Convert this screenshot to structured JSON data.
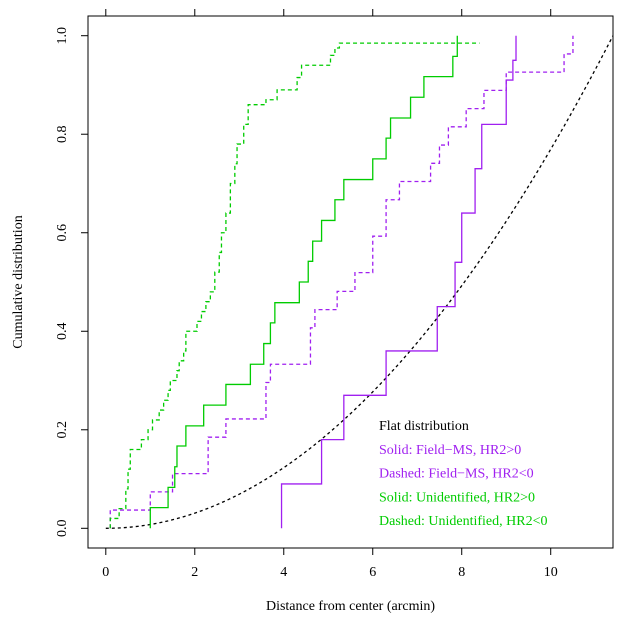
{
  "chart_data": {
    "type": "line",
    "title": "",
    "xlabel": "Distance from center (arcmin)",
    "ylabel": "Cumulative distribution",
    "xlim": [
      -0.4,
      11.4
    ],
    "ylim": [
      -0.04,
      1.04
    ],
    "x_ticks": [
      0,
      2,
      4,
      6,
      8,
      10
    ],
    "x_tick_labels": [
      "0",
      "2",
      "4",
      "6",
      "8",
      "10"
    ],
    "y_ticks": [
      0.0,
      0.2,
      0.4,
      0.6,
      0.8,
      1.0
    ],
    "y_tick_labels": [
      "0.0",
      "0.2",
      "0.4",
      "0.6",
      "0.8",
      "1.0"
    ],
    "grid": false,
    "box": true,
    "legend_position": "bottom-right",
    "colors": {
      "purple": "#a020f0",
      "green": "#00cc00",
      "black": "#000000"
    },
    "legend": [
      {
        "text": "Flat distribution",
        "color": "#000000"
      },
      {
        "text": "Solid: Field−MS, HR2>0",
        "color": "#a020f0"
      },
      {
        "text": "Dashed: Field−MS, HR2<0",
        "color": "#a020f0"
      },
      {
        "text": "Solid: Unidentified, HR2>0",
        "color": "#00cc00"
      },
      {
        "text": "Dashed: Unidentified, HR2<0",
        "color": "#00cc00"
      }
    ],
    "series": [
      {
        "style": "flat",
        "color": "#000000",
        "dash": "dotted",
        "rmax": 11.4
      },
      {
        "style": "step",
        "color": "#a020f0",
        "dash": "solid",
        "points": [
          [
            3.95,
            0.0
          ],
          [
            3.95,
            0.09
          ],
          [
            4.85,
            0.09
          ],
          [
            4.85,
            0.18
          ],
          [
            5.35,
            0.18
          ],
          [
            5.35,
            0.27
          ],
          [
            6.3,
            0.27
          ],
          [
            6.3,
            0.36
          ],
          [
            7.45,
            0.36
          ],
          [
            7.45,
            0.45
          ],
          [
            7.85,
            0.45
          ],
          [
            7.85,
            0.54
          ],
          [
            8.0,
            0.54
          ],
          [
            8.0,
            0.64
          ],
          [
            8.3,
            0.64
          ],
          [
            8.3,
            0.73
          ],
          [
            8.45,
            0.73
          ],
          [
            8.45,
            0.82
          ],
          [
            9.0,
            0.82
          ],
          [
            9.0,
            0.91
          ],
          [
            9.15,
            0.91
          ],
          [
            9.15,
            0.95
          ],
          [
            9.22,
            0.95
          ],
          [
            9.22,
            1.0
          ]
        ]
      },
      {
        "style": "step",
        "color": "#a020f0",
        "dash": "dashed",
        "points": [
          [
            0.1,
            0.0
          ],
          [
            0.1,
            0.037
          ],
          [
            1.0,
            0.037
          ],
          [
            1.0,
            0.074
          ],
          [
            1.5,
            0.074
          ],
          [
            1.5,
            0.111
          ],
          [
            2.3,
            0.111
          ],
          [
            2.3,
            0.185
          ],
          [
            2.7,
            0.185
          ],
          [
            2.7,
            0.222
          ],
          [
            3.6,
            0.222
          ],
          [
            3.6,
            0.296
          ],
          [
            3.7,
            0.296
          ],
          [
            3.7,
            0.333
          ],
          [
            4.6,
            0.333
          ],
          [
            4.6,
            0.407
          ],
          [
            4.7,
            0.407
          ],
          [
            4.7,
            0.444
          ],
          [
            5.2,
            0.444
          ],
          [
            5.2,
            0.481
          ],
          [
            5.6,
            0.481
          ],
          [
            5.6,
            0.519
          ],
          [
            6.0,
            0.519
          ],
          [
            6.0,
            0.593
          ],
          [
            6.3,
            0.593
          ],
          [
            6.3,
            0.667
          ],
          [
            6.6,
            0.667
          ],
          [
            6.6,
            0.704
          ],
          [
            7.3,
            0.704
          ],
          [
            7.3,
            0.741
          ],
          [
            7.5,
            0.741
          ],
          [
            7.5,
            0.778
          ],
          [
            7.7,
            0.778
          ],
          [
            7.7,
            0.815
          ],
          [
            8.1,
            0.815
          ],
          [
            8.1,
            0.852
          ],
          [
            8.5,
            0.852
          ],
          [
            8.5,
            0.889
          ],
          [
            9.0,
            0.889
          ],
          [
            9.0,
            0.926
          ],
          [
            10.3,
            0.926
          ],
          [
            10.3,
            0.963
          ],
          [
            10.5,
            0.963
          ],
          [
            10.5,
            1.0
          ]
        ]
      },
      {
        "style": "step",
        "color": "#00cc00",
        "dash": "solid",
        "points": [
          [
            1.0,
            0.0
          ],
          [
            1.0,
            0.042
          ],
          [
            1.4,
            0.042
          ],
          [
            1.4,
            0.083
          ],
          [
            1.55,
            0.083
          ],
          [
            1.55,
            0.125
          ],
          [
            1.6,
            0.125
          ],
          [
            1.6,
            0.167
          ],
          [
            1.8,
            0.167
          ],
          [
            1.8,
            0.208
          ],
          [
            2.2,
            0.208
          ],
          [
            2.2,
            0.25
          ],
          [
            2.7,
            0.25
          ],
          [
            2.7,
            0.292
          ],
          [
            3.25,
            0.292
          ],
          [
            3.25,
            0.333
          ],
          [
            3.55,
            0.333
          ],
          [
            3.55,
            0.375
          ],
          [
            3.7,
            0.375
          ],
          [
            3.7,
            0.417
          ],
          [
            3.8,
            0.417
          ],
          [
            3.8,
            0.458
          ],
          [
            4.35,
            0.458
          ],
          [
            4.35,
            0.5
          ],
          [
            4.55,
            0.5
          ],
          [
            4.55,
            0.542
          ],
          [
            4.65,
            0.542
          ],
          [
            4.65,
            0.583
          ],
          [
            4.85,
            0.583
          ],
          [
            4.85,
            0.625
          ],
          [
            5.15,
            0.625
          ],
          [
            5.15,
            0.667
          ],
          [
            5.35,
            0.667
          ],
          [
            5.35,
            0.708
          ],
          [
            6.0,
            0.708
          ],
          [
            6.0,
            0.75
          ],
          [
            6.3,
            0.75
          ],
          [
            6.3,
            0.792
          ],
          [
            6.4,
            0.792
          ],
          [
            6.4,
            0.833
          ],
          [
            6.85,
            0.833
          ],
          [
            6.85,
            0.875
          ],
          [
            7.15,
            0.875
          ],
          [
            7.15,
            0.917
          ],
          [
            7.8,
            0.917
          ],
          [
            7.8,
            0.958
          ],
          [
            7.9,
            0.958
          ],
          [
            7.9,
            1.0
          ]
        ]
      },
      {
        "style": "step",
        "color": "#00cc00",
        "dash": "dashed",
        "points": [
          [
            0.1,
            0.0
          ],
          [
            0.1,
            0.02
          ],
          [
            0.3,
            0.02
          ],
          [
            0.3,
            0.04
          ],
          [
            0.45,
            0.04
          ],
          [
            0.45,
            0.08
          ],
          [
            0.5,
            0.08
          ],
          [
            0.5,
            0.12
          ],
          [
            0.55,
            0.12
          ],
          [
            0.55,
            0.16
          ],
          [
            0.8,
            0.16
          ],
          [
            0.8,
            0.18
          ],
          [
            0.95,
            0.18
          ],
          [
            0.95,
            0.2
          ],
          [
            1.05,
            0.2
          ],
          [
            1.05,
            0.22
          ],
          [
            1.2,
            0.22
          ],
          [
            1.2,
            0.24
          ],
          [
            1.3,
            0.24
          ],
          [
            1.3,
            0.26
          ],
          [
            1.4,
            0.26
          ],
          [
            1.4,
            0.28
          ],
          [
            1.45,
            0.28
          ],
          [
            1.45,
            0.3
          ],
          [
            1.6,
            0.3
          ],
          [
            1.6,
            0.32
          ],
          [
            1.65,
            0.32
          ],
          [
            1.65,
            0.34
          ],
          [
            1.75,
            0.34
          ],
          [
            1.75,
            0.36
          ],
          [
            1.8,
            0.36
          ],
          [
            1.8,
            0.4
          ],
          [
            2.05,
            0.4
          ],
          [
            2.05,
            0.42
          ],
          [
            2.15,
            0.42
          ],
          [
            2.15,
            0.44
          ],
          [
            2.25,
            0.44
          ],
          [
            2.25,
            0.46
          ],
          [
            2.35,
            0.46
          ],
          [
            2.35,
            0.48
          ],
          [
            2.45,
            0.48
          ],
          [
            2.45,
            0.52
          ],
          [
            2.55,
            0.52
          ],
          [
            2.55,
            0.56
          ],
          [
            2.6,
            0.56
          ],
          [
            2.6,
            0.6
          ],
          [
            2.7,
            0.6
          ],
          [
            2.7,
            0.64
          ],
          [
            2.8,
            0.64
          ],
          [
            2.8,
            0.7
          ],
          [
            2.9,
            0.7
          ],
          [
            2.9,
            0.74
          ],
          [
            2.95,
            0.74
          ],
          [
            2.95,
            0.78
          ],
          [
            3.1,
            0.78
          ],
          [
            3.1,
            0.82
          ],
          [
            3.2,
            0.82
          ],
          [
            3.2,
            0.86
          ],
          [
            3.6,
            0.86
          ],
          [
            3.6,
            0.87
          ],
          [
            3.85,
            0.87
          ],
          [
            3.85,
            0.89
          ],
          [
            4.3,
            0.89
          ],
          [
            4.3,
            0.915
          ],
          [
            4.4,
            0.915
          ],
          [
            4.4,
            0.94
          ],
          [
            5.05,
            0.94
          ],
          [
            5.05,
            0.96
          ],
          [
            5.15,
            0.96
          ],
          [
            5.15,
            0.975
          ],
          [
            5.25,
            0.975
          ],
          [
            5.25,
            0.985
          ],
          [
            8.4,
            0.985
          ]
        ]
      }
    ]
  }
}
